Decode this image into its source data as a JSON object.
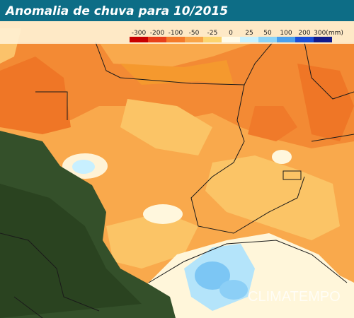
{
  "header": {
    "title": "Anomalia de chuva para 10/2015"
  },
  "legend": {
    "labels": [
      "-300",
      "-200",
      "-100",
      "-50",
      "-25",
      "0",
      "25",
      "50",
      "100",
      "200",
      "300(mm)"
    ],
    "colors": [
      "#c80000",
      "#e8401a",
      "#f47a2a",
      "#f8a448",
      "#fcd46e",
      "#fffbe8",
      "#c8f2ff",
      "#8cd4f8",
      "#4aa0ee",
      "#1a4ed8",
      "#101a8c"
    ]
  },
  "watermark": "CLIMATEMPO"
}
